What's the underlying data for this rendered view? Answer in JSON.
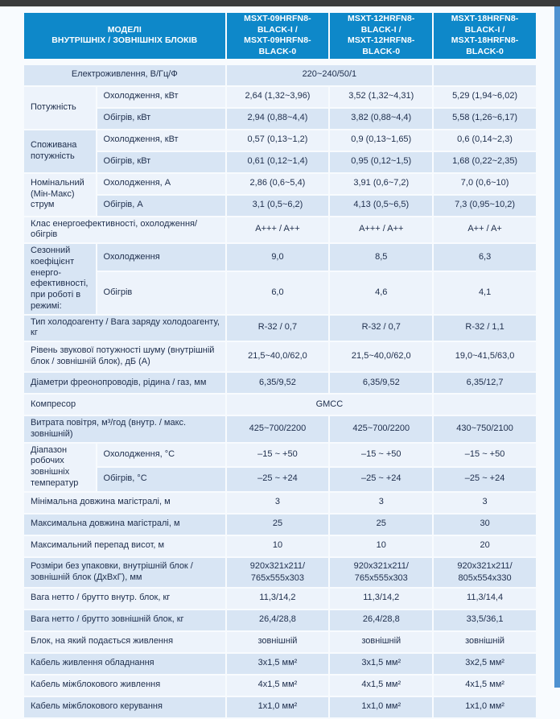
{
  "colors": {
    "header_bg": "#0e88c9",
    "row_dark": "#d8e5f4",
    "row_light": "#edf3fb",
    "top_bar": "#3b3b3b",
    "side_strip": "#4f92d1",
    "text": "#20304e"
  },
  "header": {
    "title": [
      "МОДЕЛІ",
      "ВНУТРІШНІХ / ЗОВНІШНІХ БЛОКІВ"
    ],
    "models": [
      [
        "MSXT-09HRFN8-BLACK-I /",
        "MSXT-09HRFN8-BLACK-0"
      ],
      [
        "MSXT-12HRFN8-BLACK-I /",
        "MSXT-12HRFN8-BLACK-0"
      ],
      [
        "MSXT-18HRFN8-BLACK-I /",
        "MSXT-18HRFN8-BLACK-0"
      ]
    ]
  },
  "rows": [
    {
      "label": "Електроживлення, В/Гц/Ф",
      "value": "220~240/50/1"
    },
    {
      "group": "Потужність",
      "sub": [
        {
          "label": "Охолодження, кВт",
          "values": [
            "2,64 (1,32~3,96)",
            "3,52 (1,32~4,31)",
            "5,29 (1,94~6,02)"
          ]
        },
        {
          "label": "Обігрів, кВт",
          "values": [
            "2,94 (0,88~4,4)",
            "3,82 (0,88~4,4)",
            "5,58 (1,26~6,17)"
          ]
        }
      ]
    },
    {
      "group": "Споживана потужність",
      "sub": [
        {
          "label": "Охолодження, кВт",
          "values": [
            "0,57 (0,13~1,2)",
            "0,9 (0,13~1,65)",
            "0,6 (0,14~2,3)"
          ]
        },
        {
          "label": "Обігрів, кВт",
          "values": [
            "0,61 (0,12~1,4)",
            "0,95 (0,12~1,5)",
            "1,68 (0,22~2,35)"
          ]
        }
      ]
    },
    {
      "group": "Номінальний (Мін-Макс) струм",
      "sub": [
        {
          "label": "Охолодження, А",
          "values": [
            "2,86 (0,6~5,4)",
            "3,91 (0,6~7,2)",
            "7,0 (0,6~10)"
          ]
        },
        {
          "label": "Обігрів, А",
          "values": [
            "3,1 (0,5~6,2)",
            "4,13 (0,5~6,5)",
            "7,3 (0,95~10,2)"
          ]
        }
      ]
    },
    {
      "label": "Клас енергоефективності, охолодження/ обігрів",
      "values": [
        "A+++ / A++",
        "A+++ / A++",
        "A++ / A+"
      ]
    },
    {
      "group": "Сезонний коефіцієнт енерго-ефективності, при роботі в режимі:",
      "sub": [
        {
          "label": "Охолодження",
          "values": [
            "9,0",
            "8,5",
            "6,3"
          ]
        },
        {
          "label": "Обігрів",
          "values": [
            "6,0",
            "4,6",
            "4,1"
          ]
        }
      ]
    },
    {
      "label": "Тип холодоагенту / Вага заряду холодоагенту, кг",
      "values": [
        "R-32 / 0,7",
        "R-32 / 0,7",
        "R-32 / 1,1"
      ]
    },
    {
      "label": "Рівень звукової потужності шуму (внутрішній блок / зовнішній блок), дБ (А)",
      "values": [
        "21,5~40,0/62,0",
        "21,5~40,0/62,0",
        "19,0~41,5/63,0"
      ]
    },
    {
      "label": "Діаметри фреонопроводів, рідина / газ, мм",
      "values": [
        "6,35/9,52",
        "6,35/9,52",
        "6,35/12,7"
      ]
    },
    {
      "label": "Компресор",
      "value": "GMCC"
    },
    {
      "label": "Витрата повітря, м³/год (внутр. / макс. зовнішній)",
      "values": [
        "425~700/2200",
        "425~700/2200",
        "430~750/2100"
      ]
    },
    {
      "group": "Діапазон робочих зовнішніх температур",
      "sub": [
        {
          "label": "Охолодження, °С",
          "values": [
            "–15 ~ +50",
            "–15 ~ +50",
            "–15 ~ +50"
          ]
        },
        {
          "label": "Обігрів, °С",
          "values": [
            "–25 ~ +24",
            "–25 ~ +24",
            "–25 ~ +24"
          ]
        }
      ]
    },
    {
      "label": "Мінімальна довжина магістралі, м",
      "values": [
        "3",
        "3",
        "3"
      ]
    },
    {
      "label": "Максимальна довжина магістралі, м",
      "values": [
        "25",
        "25",
        "30"
      ]
    },
    {
      "label": "Максимальний перепад висот, м",
      "values": [
        "10",
        "10",
        "20"
      ]
    },
    {
      "label": "Розміри без упаковки, внутрішній блок / зовнішній блок (ДхВхГ), мм",
      "values": [
        "920х321х211/",
        "920х321х211/",
        "920х321х211/"
      ],
      "values2": [
        "765х555х303",
        "765х555х303",
        "805х554х330"
      ]
    },
    {
      "label": "Вага нетто / брутто внутр. блок, кг",
      "values": [
        "11,3/14,2",
        "11,3/14,2",
        "11,3/14,4"
      ]
    },
    {
      "label": "Вага нетто / брутто зовнішній блок, кг",
      "values": [
        "26,4/28,8",
        "26,4/28,8",
        "33,5/36,1"
      ]
    },
    {
      "label": "Блок, на який подається живлення",
      "values": [
        "зовнішній",
        "зовнішній",
        "зовнішній"
      ]
    },
    {
      "label": "Кабель живлення обладнання",
      "values": [
        "3х1,5 мм²",
        "3х1,5 мм²",
        "3х2,5 мм²"
      ]
    },
    {
      "label": "Кабель міжблокового живлення",
      "values": [
        "4х1,5 мм²",
        "4х1,5 мм²",
        "4х1,5 мм²"
      ]
    },
    {
      "label": "Кабель міжблокового керування",
      "values": [
        "1х1,0 мм²",
        "1х1,0 мм²",
        "1х1,0 мм²"
      ]
    }
  ]
}
